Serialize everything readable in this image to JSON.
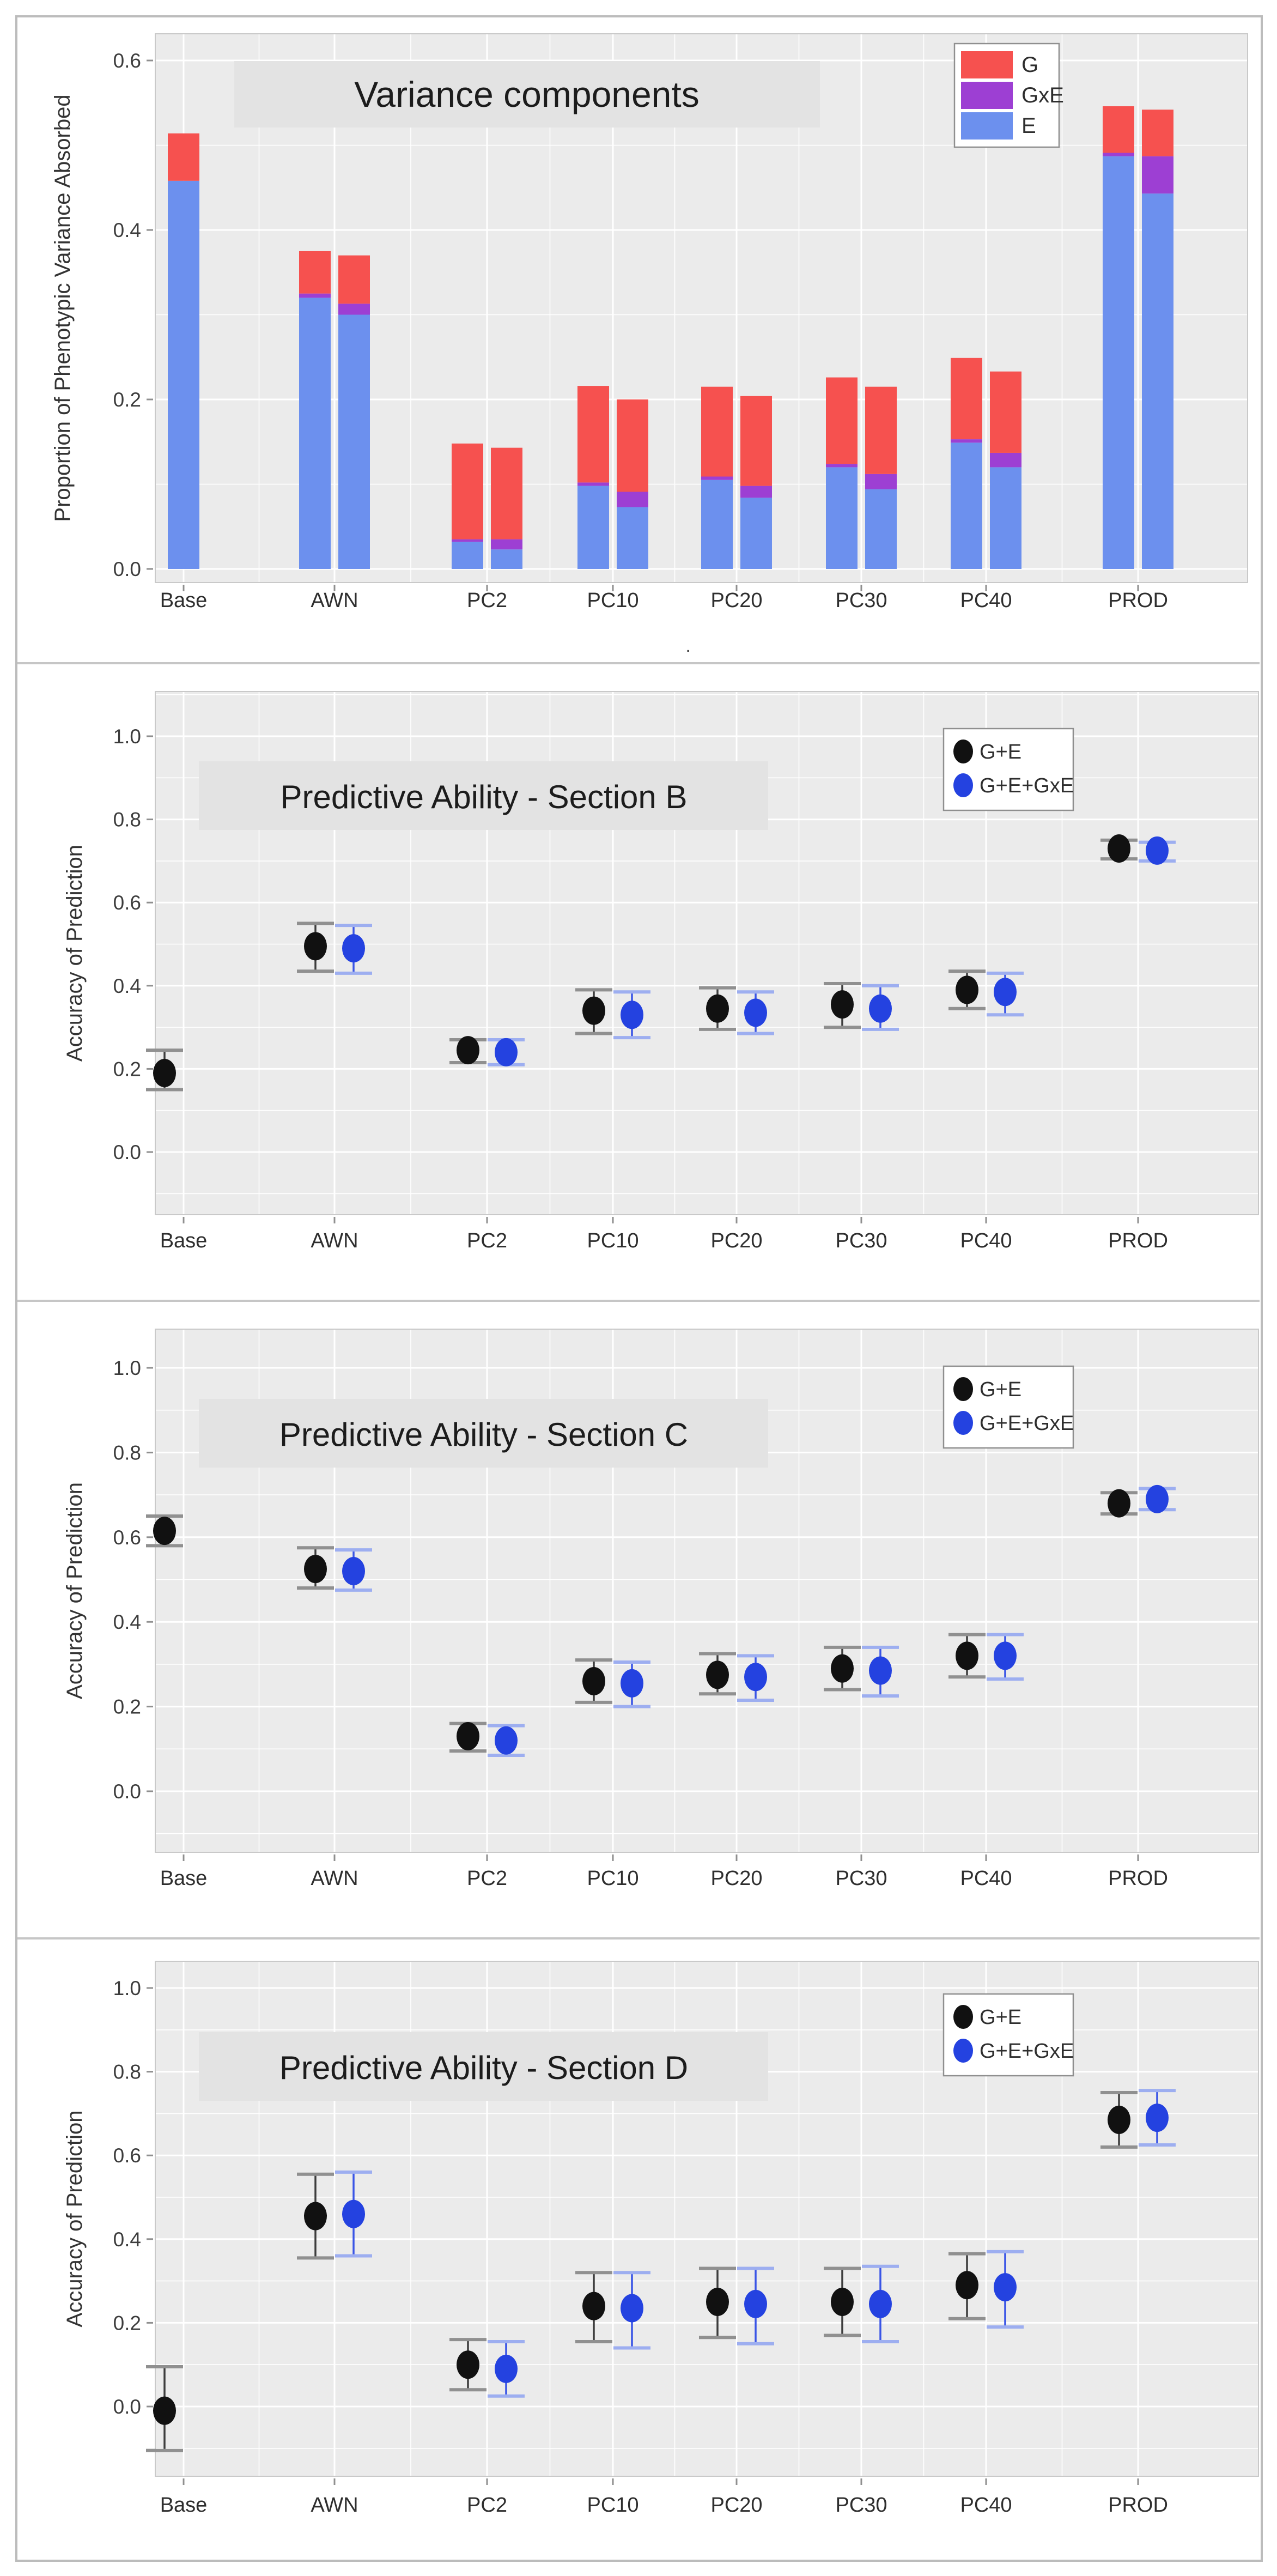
{
  "figure": {
    "background": "#ffffff",
    "frame_color": "#bcbcbc",
    "panel_bg": "#ebebeb",
    "strip_bg": "#e3e3e3",
    "grid_color": "#ffffff",
    "categories": [
      "Base",
      "AWN",
      "PC2",
      "PC10",
      "PC20",
      "PC30",
      "PC40",
      "PROD"
    ]
  },
  "chart_data": [
    {
      "id": "variance",
      "type": "bar",
      "title": "Variance components",
      "ylabel": "Proportion of Phenotypic Variance Absorbed",
      "xlabel": ".",
      "yticks": [
        "0.0",
        "0.2",
        "0.4",
        "0.6"
      ],
      "ytick_values": [
        0.0,
        0.2,
        0.4,
        0.6
      ],
      "ylim": [
        0,
        0.63
      ],
      "grid": "on",
      "legend_position": "top-right",
      "legend": [
        {
          "label": "G",
          "color": "#F6514F"
        },
        {
          "label": "GxE",
          "color": "#9D3FD3"
        },
        {
          "label": "E",
          "color": "#6C90EE"
        }
      ],
      "categories": [
        "Base",
        "AWN",
        "PC2",
        "PC10",
        "PC20",
        "PC30",
        "PC40",
        "PROD"
      ],
      "stack_order": [
        "E",
        "GxE",
        "G"
      ],
      "stacks": [
        {
          "category": "Base",
          "bars": [
            {
              "E": 0.458,
              "GxE": 0.0,
              "G": 0.056
            }
          ]
        },
        {
          "category": "AWN",
          "bars": [
            {
              "E": 0.32,
              "GxE": 0.005,
              "G": 0.05
            },
            {
              "E": 0.3,
              "GxE": 0.013,
              "G": 0.057
            }
          ]
        },
        {
          "category": "PC2",
          "bars": [
            {
              "E": 0.032,
              "GxE": 0.003,
              "G": 0.113
            },
            {
              "E": 0.023,
              "GxE": 0.012,
              "G": 0.108
            }
          ]
        },
        {
          "category": "PC10",
          "bars": [
            {
              "E": 0.098,
              "GxE": 0.004,
              "G": 0.114
            },
            {
              "E": 0.073,
              "GxE": 0.018,
              "G": 0.109
            }
          ]
        },
        {
          "category": "PC20",
          "bars": [
            {
              "E": 0.105,
              "GxE": 0.004,
              "G": 0.106
            },
            {
              "E": 0.084,
              "GxE": 0.014,
              "G": 0.106
            }
          ]
        },
        {
          "category": "PC30",
          "bars": [
            {
              "E": 0.12,
              "GxE": 0.004,
              "G": 0.102
            },
            {
              "E": 0.094,
              "GxE": 0.018,
              "G": 0.103
            }
          ]
        },
        {
          "category": "PC40",
          "bars": [
            {
              "E": 0.149,
              "GxE": 0.004,
              "G": 0.096
            },
            {
              "E": 0.12,
              "GxE": 0.017,
              "G": 0.096
            }
          ]
        },
        {
          "category": "PROD",
          "bars": [
            {
              "E": 0.487,
              "GxE": 0.004,
              "G": 0.055
            },
            {
              "E": 0.443,
              "GxE": 0.044,
              "G": 0.055
            }
          ]
        }
      ]
    },
    {
      "id": "sectionB",
      "type": "scatter",
      "title": "Predictive Ability - Section B",
      "ylabel": "Accuracy of Prediction",
      "yticks": [
        "0.0",
        "0.2",
        "0.4",
        "0.6",
        "0.8",
        "1.0"
      ],
      "ytick_values": [
        0.0,
        0.2,
        0.4,
        0.6,
        0.8,
        1.0
      ],
      "ylim": [
        -0.15,
        1.1
      ],
      "grid": "on",
      "legend_position": "top-right",
      "legend": [
        {
          "label": "G+E",
          "color": "#111111"
        },
        {
          "label": "G+E+GxE",
          "color": "#2442E0"
        }
      ],
      "categories": [
        "Base",
        "AWN",
        "PC2",
        "PC10",
        "PC20",
        "PC30",
        "PC40",
        "PROD"
      ],
      "series": [
        {
          "name": "G+E",
          "color": "#111111",
          "line_color": "#3d3d3d",
          "cap_color": "#909090",
          "values": [
            0.19,
            0.495,
            0.245,
            0.34,
            0.345,
            0.355,
            0.39,
            0.73
          ],
          "err_low": [
            0.15,
            0.435,
            0.215,
            0.285,
            0.295,
            0.3,
            0.345,
            0.705
          ],
          "err_high": [
            0.245,
            0.55,
            0.27,
            0.39,
            0.395,
            0.405,
            0.435,
            0.75
          ]
        },
        {
          "name": "G+E+GxE",
          "color": "#2442E0",
          "line_color": "#3a55e6",
          "cap_color": "#9daef0",
          "values": [
            null,
            0.49,
            0.24,
            0.33,
            0.335,
            0.345,
            0.385,
            0.725
          ],
          "err_low": [
            null,
            0.43,
            0.21,
            0.275,
            0.285,
            0.295,
            0.33,
            0.7
          ],
          "err_high": [
            null,
            0.545,
            0.27,
            0.385,
            0.385,
            0.4,
            0.43,
            0.745
          ]
        }
      ]
    },
    {
      "id": "sectionC",
      "type": "scatter",
      "title": "Predictive Ability - Section C",
      "ylabel": "Accuracy of Prediction",
      "yticks": [
        "0.0",
        "0.2",
        "0.4",
        "0.6",
        "0.8",
        "1.0"
      ],
      "ytick_values": [
        0.0,
        0.2,
        0.4,
        0.6,
        0.8,
        1.0
      ],
      "ylim": [
        -0.15,
        1.1
      ],
      "grid": "on",
      "legend_position": "top-right",
      "legend": [
        {
          "label": "G+E",
          "color": "#111111"
        },
        {
          "label": "G+E+GxE",
          "color": "#2442E0"
        }
      ],
      "categories": [
        "Base",
        "AWN",
        "PC2",
        "PC10",
        "PC20",
        "PC30",
        "PC40",
        "PROD"
      ],
      "series": [
        {
          "name": "G+E",
          "color": "#111111",
          "line_color": "#3d3d3d",
          "cap_color": "#909090",
          "values": [
            0.615,
            0.525,
            0.13,
            0.26,
            0.275,
            0.29,
            0.32,
            0.68
          ],
          "err_low": [
            0.58,
            0.48,
            0.095,
            0.21,
            0.23,
            0.24,
            0.27,
            0.655
          ],
          "err_high": [
            0.65,
            0.575,
            0.16,
            0.31,
            0.325,
            0.34,
            0.37,
            0.705
          ]
        },
        {
          "name": "G+E+GxE",
          "color": "#2442E0",
          "line_color": "#3a55e6",
          "cap_color": "#9daef0",
          "values": [
            null,
            0.52,
            0.12,
            0.255,
            0.27,
            0.285,
            0.32,
            0.69
          ],
          "err_low": [
            null,
            0.475,
            0.085,
            0.2,
            0.215,
            0.225,
            0.265,
            0.665
          ],
          "err_high": [
            null,
            0.57,
            0.155,
            0.305,
            0.32,
            0.34,
            0.37,
            0.715
          ]
        }
      ]
    },
    {
      "id": "sectionD",
      "type": "scatter",
      "title": "Predictive Ability - Section D",
      "ylabel": "Accuracy of Prediction",
      "yticks": [
        "0.0",
        "0.2",
        "0.4",
        "0.6",
        "0.8",
        "1.0"
      ],
      "ytick_values": [
        0.0,
        0.2,
        0.4,
        0.6,
        0.8,
        1.0
      ],
      "ylim": [
        -0.17,
        1.1
      ],
      "grid": "on",
      "legend_position": "top-right",
      "legend": [
        {
          "label": "G+E",
          "color": "#111111"
        },
        {
          "label": "G+E+GxE",
          "color": "#2442E0"
        }
      ],
      "categories": [
        "Base",
        "AWN",
        "PC2",
        "PC10",
        "PC20",
        "PC30",
        "PC40",
        "PROD"
      ],
      "series": [
        {
          "name": "G+E",
          "color": "#111111",
          "line_color": "#3d3d3d",
          "cap_color": "#909090",
          "values": [
            -0.01,
            0.455,
            0.1,
            0.24,
            0.25,
            0.25,
            0.29,
            0.685
          ],
          "err_low": [
            -0.105,
            0.355,
            0.04,
            0.155,
            0.165,
            0.17,
            0.21,
            0.62
          ],
          "err_high": [
            0.095,
            0.555,
            0.16,
            0.32,
            0.33,
            0.33,
            0.365,
            0.75
          ]
        },
        {
          "name": "G+E+GxE",
          "color": "#2442E0",
          "line_color": "#3a55e6",
          "cap_color": "#9daef0",
          "values": [
            null,
            0.46,
            0.09,
            0.235,
            0.245,
            0.245,
            0.285,
            0.69
          ],
          "err_low": [
            null,
            0.36,
            0.025,
            0.14,
            0.15,
            0.155,
            0.19,
            0.625
          ],
          "err_high": [
            null,
            0.56,
            0.155,
            0.32,
            0.33,
            0.335,
            0.37,
            0.755
          ]
        }
      ]
    }
  ]
}
